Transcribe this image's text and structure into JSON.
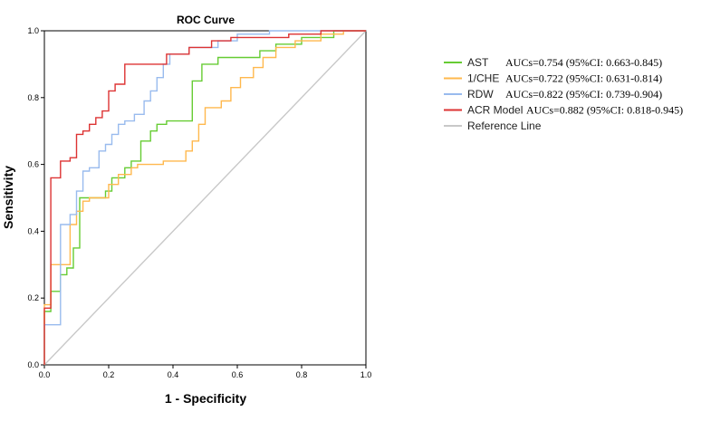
{
  "chart_data": {
    "type": "line",
    "title": "ROC Curve",
    "xlabel": "1 - Specificity",
    "ylabel": "Sensitivity",
    "xlim": [
      0.0,
      1.0
    ],
    "ylim": [
      0.0,
      1.0
    ],
    "x_ticks": [
      "0.0",
      "0.2",
      "0.4",
      "0.6",
      "0.8",
      "1.0"
    ],
    "y_ticks": [
      "0.0",
      "0.2",
      "0.4",
      "0.6",
      "0.8",
      "1.0"
    ],
    "grid": false,
    "legend_position": "right",
    "series": [
      {
        "name": "AST",
        "auc_text": "AUCs=0.754 (95%CI: 0.663-0.845)",
        "color": "#66cc33",
        "points": [
          [
            0,
            0
          ],
          [
            0,
            0.16
          ],
          [
            0.02,
            0.16
          ],
          [
            0.02,
            0.22
          ],
          [
            0.05,
            0.22
          ],
          [
            0.05,
            0.27
          ],
          [
            0.07,
            0.27
          ],
          [
            0.07,
            0.29
          ],
          [
            0.09,
            0.29
          ],
          [
            0.09,
            0.35
          ],
          [
            0.11,
            0.35
          ],
          [
            0.11,
            0.5
          ],
          [
            0.19,
            0.5
          ],
          [
            0.19,
            0.52
          ],
          [
            0.21,
            0.52
          ],
          [
            0.21,
            0.56
          ],
          [
            0.25,
            0.56
          ],
          [
            0.25,
            0.59
          ],
          [
            0.27,
            0.59
          ],
          [
            0.27,
            0.61
          ],
          [
            0.3,
            0.61
          ],
          [
            0.3,
            0.67
          ],
          [
            0.33,
            0.67
          ],
          [
            0.33,
            0.7
          ],
          [
            0.35,
            0.7
          ],
          [
            0.35,
            0.72
          ],
          [
            0.38,
            0.72
          ],
          [
            0.38,
            0.73
          ],
          [
            0.46,
            0.73
          ],
          [
            0.46,
            0.85
          ],
          [
            0.49,
            0.85
          ],
          [
            0.49,
            0.9
          ],
          [
            0.54,
            0.9
          ],
          [
            0.54,
            0.92
          ],
          [
            0.67,
            0.92
          ],
          [
            0.67,
            0.94
          ],
          [
            0.72,
            0.94
          ],
          [
            0.72,
            0.96
          ],
          [
            0.8,
            0.96
          ],
          [
            0.8,
            0.98
          ],
          [
            0.9,
            0.98
          ],
          [
            0.9,
            1.0
          ],
          [
            1.0,
            1.0
          ]
        ]
      },
      {
        "name": "1/CHE",
        "auc_text": "AUCs=0.722 (95%CI: 0.631-0.814)",
        "color": "#ffb84d",
        "points": [
          [
            0,
            0
          ],
          [
            0,
            0.18
          ],
          [
            0.02,
            0.18
          ],
          [
            0.02,
            0.3
          ],
          [
            0.08,
            0.3
          ],
          [
            0.08,
            0.42
          ],
          [
            0.1,
            0.42
          ],
          [
            0.1,
            0.46
          ],
          [
            0.12,
            0.46
          ],
          [
            0.12,
            0.49
          ],
          [
            0.14,
            0.49
          ],
          [
            0.14,
            0.5
          ],
          [
            0.2,
            0.5
          ],
          [
            0.2,
            0.54
          ],
          [
            0.23,
            0.54
          ],
          [
            0.23,
            0.57
          ],
          [
            0.27,
            0.57
          ],
          [
            0.27,
            0.59
          ],
          [
            0.29,
            0.59
          ],
          [
            0.29,
            0.6
          ],
          [
            0.37,
            0.6
          ],
          [
            0.37,
            0.61
          ],
          [
            0.44,
            0.61
          ],
          [
            0.44,
            0.64
          ],
          [
            0.46,
            0.64
          ],
          [
            0.46,
            0.67
          ],
          [
            0.48,
            0.67
          ],
          [
            0.48,
            0.72
          ],
          [
            0.5,
            0.72
          ],
          [
            0.5,
            0.77
          ],
          [
            0.55,
            0.77
          ],
          [
            0.55,
            0.79
          ],
          [
            0.58,
            0.79
          ],
          [
            0.58,
            0.83
          ],
          [
            0.61,
            0.83
          ],
          [
            0.61,
            0.86
          ],
          [
            0.65,
            0.86
          ],
          [
            0.65,
            0.89
          ],
          [
            0.68,
            0.89
          ],
          [
            0.68,
            0.92
          ],
          [
            0.72,
            0.92
          ],
          [
            0.72,
            0.95
          ],
          [
            0.78,
            0.95
          ],
          [
            0.78,
            0.97
          ],
          [
            0.86,
            0.97
          ],
          [
            0.86,
            0.99
          ],
          [
            0.93,
            0.99
          ],
          [
            0.93,
            1.0
          ],
          [
            1.0,
            1.0
          ]
        ]
      },
      {
        "name": "RDW",
        "auc_text": "AUCs=0.822 (95%CI: 0.739-0.904)",
        "color": "#99bbee",
        "points": [
          [
            0,
            0
          ],
          [
            0,
            0.12
          ],
          [
            0.05,
            0.12
          ],
          [
            0.05,
            0.42
          ],
          [
            0.08,
            0.42
          ],
          [
            0.08,
            0.45
          ],
          [
            0.1,
            0.45
          ],
          [
            0.1,
            0.52
          ],
          [
            0.12,
            0.52
          ],
          [
            0.12,
            0.58
          ],
          [
            0.14,
            0.58
          ],
          [
            0.14,
            0.59
          ],
          [
            0.17,
            0.59
          ],
          [
            0.17,
            0.64
          ],
          [
            0.19,
            0.64
          ],
          [
            0.19,
            0.66
          ],
          [
            0.21,
            0.66
          ],
          [
            0.21,
            0.69
          ],
          [
            0.23,
            0.69
          ],
          [
            0.23,
            0.72
          ],
          [
            0.25,
            0.72
          ],
          [
            0.25,
            0.73
          ],
          [
            0.28,
            0.73
          ],
          [
            0.28,
            0.75
          ],
          [
            0.31,
            0.75
          ],
          [
            0.31,
            0.79
          ],
          [
            0.33,
            0.79
          ],
          [
            0.33,
            0.82
          ],
          [
            0.35,
            0.82
          ],
          [
            0.35,
            0.86
          ],
          [
            0.37,
            0.86
          ],
          [
            0.37,
            0.9
          ],
          [
            0.39,
            0.9
          ],
          [
            0.39,
            0.93
          ],
          [
            0.45,
            0.93
          ],
          [
            0.45,
            0.95
          ],
          [
            0.54,
            0.95
          ],
          [
            0.54,
            0.97
          ],
          [
            0.6,
            0.97
          ],
          [
            0.6,
            0.99
          ],
          [
            0.7,
            0.99
          ],
          [
            0.7,
            1.0
          ],
          [
            1.0,
            1.0
          ]
        ]
      },
      {
        "name": "ACR Model",
        "auc_text": "AUCs=0.882 (95%CI: 0.818-0.945)",
        "color": "#dd3333",
        "points": [
          [
            0,
            0
          ],
          [
            0,
            0.17
          ],
          [
            0.02,
            0.17
          ],
          [
            0.02,
            0.56
          ],
          [
            0.05,
            0.56
          ],
          [
            0.05,
            0.61
          ],
          [
            0.08,
            0.61
          ],
          [
            0.08,
            0.62
          ],
          [
            0.1,
            0.62
          ],
          [
            0.1,
            0.69
          ],
          [
            0.12,
            0.69
          ],
          [
            0.12,
            0.7
          ],
          [
            0.14,
            0.7
          ],
          [
            0.14,
            0.72
          ],
          [
            0.16,
            0.72
          ],
          [
            0.16,
            0.74
          ],
          [
            0.18,
            0.74
          ],
          [
            0.18,
            0.76
          ],
          [
            0.2,
            0.76
          ],
          [
            0.2,
            0.82
          ],
          [
            0.22,
            0.82
          ],
          [
            0.22,
            0.84
          ],
          [
            0.25,
            0.84
          ],
          [
            0.25,
            0.9
          ],
          [
            0.38,
            0.9
          ],
          [
            0.38,
            0.93
          ],
          [
            0.45,
            0.93
          ],
          [
            0.45,
            0.95
          ],
          [
            0.52,
            0.95
          ],
          [
            0.52,
            0.97
          ],
          [
            0.58,
            0.97
          ],
          [
            0.58,
            0.98
          ],
          [
            0.76,
            0.98
          ],
          [
            0.76,
            0.99
          ],
          [
            0.86,
            0.99
          ],
          [
            0.86,
            1.0
          ],
          [
            1.0,
            1.0
          ]
        ]
      },
      {
        "name": "Reference Line",
        "auc_text": "",
        "color": "#c8c8c8",
        "points": [
          [
            0,
            0
          ],
          [
            1,
            1
          ]
        ]
      }
    ]
  }
}
